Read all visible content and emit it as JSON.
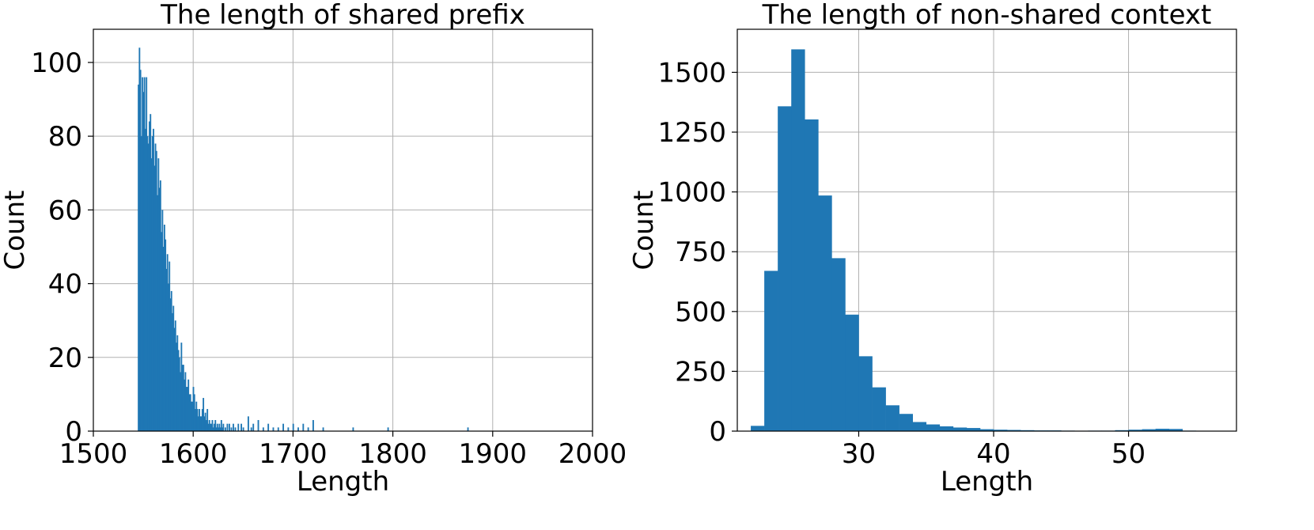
{
  "chart_data": [
    {
      "type": "bar",
      "title": "The length of shared prefix",
      "xlabel": "Length",
      "ylabel": "Count",
      "xlim": [
        1500,
        2000
      ],
      "ylim": [
        0,
        109
      ],
      "xticks": [
        1500,
        1600,
        1700,
        1800,
        1900,
        2000
      ],
      "xtick_labels": [
        "1500",
        "1600",
        "1700",
        "1800",
        "1900",
        "2000"
      ],
      "yticks": [
        0,
        20,
        40,
        60,
        80,
        100
      ],
      "ytick_labels": [
        "0",
        "20",
        "40",
        "60",
        "80",
        "100"
      ],
      "grid": true,
      "color": "#1f77b4",
      "bin_width": 1,
      "x": [
        1545,
        1546,
        1547,
        1548,
        1549,
        1550,
        1551,
        1552,
        1553,
        1554,
        1555,
        1556,
        1557,
        1558,
        1559,
        1560,
        1561,
        1562,
        1563,
        1564,
        1565,
        1566,
        1567,
        1568,
        1569,
        1570,
        1571,
        1572,
        1573,
        1574,
        1575,
        1576,
        1577,
        1578,
        1579,
        1580,
        1581,
        1582,
        1583,
        1584,
        1585,
        1586,
        1587,
        1588,
        1589,
        1590,
        1591,
        1592,
        1593,
        1594,
        1595,
        1596,
        1597,
        1598,
        1599,
        1600,
        1601,
        1602,
        1603,
        1604,
        1605,
        1606,
        1607,
        1608,
        1609,
        1610,
        1611,
        1612,
        1613,
        1614,
        1615,
        1616,
        1617,
        1618,
        1619,
        1620,
        1621,
        1622,
        1623,
        1624,
        1625,
        1626,
        1627,
        1628,
        1629,
        1630,
        1632,
        1634,
        1636,
        1638,
        1640,
        1642,
        1645,
        1648,
        1650,
        1655,
        1658,
        1660,
        1665,
        1670,
        1675,
        1680,
        1685,
        1690,
        1695,
        1700,
        1705,
        1710,
        1715,
        1720,
        1730,
        1760,
        1795,
        1875
      ],
      "values": [
        94,
        104,
        98,
        80,
        96,
        92,
        96,
        82,
        96,
        80,
        78,
        84,
        86,
        74,
        80,
        82,
        72,
        78,
        76,
        64,
        74,
        66,
        68,
        54,
        60,
        50,
        56,
        52,
        44,
        48,
        40,
        46,
        36,
        38,
        32,
        34,
        28,
        30,
        24,
        26,
        22,
        20,
        16,
        24,
        18,
        18,
        14,
        16,
        12,
        12,
        14,
        10,
        10,
        8,
        8,
        12,
        10,
        6,
        8,
        6,
        4,
        6,
        4,
        4,
        6,
        9,
        4,
        5,
        3,
        6,
        2,
        3,
        2,
        2,
        3,
        1,
        2,
        3,
        1,
        2,
        1,
        2,
        1,
        3,
        1,
        2,
        1,
        2,
        2,
        1,
        2,
        1,
        2,
        2,
        1,
        4,
        1,
        2,
        3,
        1,
        2,
        1,
        1,
        2,
        1,
        2,
        1,
        2,
        1,
        3,
        1,
        1,
        1,
        1
      ]
    },
    {
      "type": "bar",
      "title": "The length of non-shared context",
      "xlabel": "Length",
      "ylabel": "Count",
      "xlim": [
        21,
        58
      ],
      "ylim": [
        0,
        1680
      ],
      "xticks": [
        30,
        40,
        50
      ],
      "xtick_labels": [
        "30",
        "40",
        "50"
      ],
      "yticks": [
        0,
        250,
        500,
        750,
        1000,
        1250,
        1500
      ],
      "ytick_labels": [
        "0",
        "250",
        "500",
        "750",
        "1000",
        "1250",
        "1500"
      ],
      "grid": true,
      "color": "#1f77b4",
      "bin_width": 1,
      "x": [
        22.5,
        23.5,
        24.5,
        25.5,
        26.5,
        27.5,
        28.5,
        29.5,
        30.5,
        31.5,
        32.5,
        33.5,
        34.5,
        35.5,
        36.5,
        37.5,
        38.5,
        39.5,
        40.5,
        41.5,
        42.5,
        43.5,
        44.5,
        45.5,
        46.5,
        47.5,
        48.5,
        49.5,
        50.5,
        51.5,
        52.5,
        53.5,
        54.5
      ],
      "values": [
        22,
        670,
        1358,
        1596,
        1303,
        985,
        723,
        487,
        313,
        183,
        108,
        72,
        38,
        28,
        20,
        15,
        13,
        8,
        6,
        5,
        4,
        3,
        3,
        2,
        1,
        2,
        2,
        4,
        6,
        8,
        10,
        9,
        2
      ]
    }
  ]
}
